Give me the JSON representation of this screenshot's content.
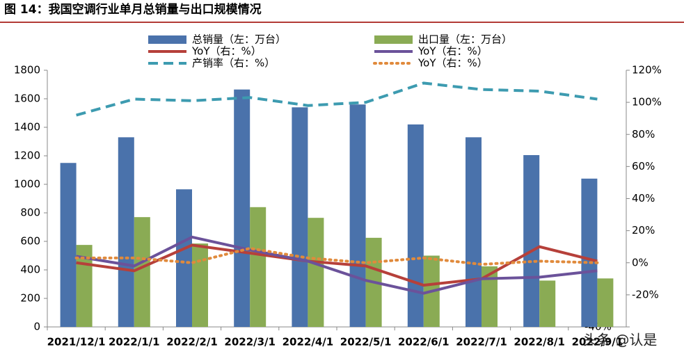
{
  "chart_data": {
    "type": "bar",
    "title": "图 14：我国空调行业单月总销量与出口规模情况",
    "categories": [
      "2021/12/1",
      "2022/1/1",
      "2022/2/1",
      "2022/3/1",
      "2022/4/1",
      "2022/5/1",
      "2022/6/1",
      "2022/7/1",
      "2022/8/1",
      "2022/9/1"
    ],
    "series": [
      {
        "name": "总销量（左：万台）",
        "type": "bar",
        "color": "#4a72ab",
        "values": [
          1150,
          1330,
          965,
          1665,
          1540,
          1560,
          1420,
          1330,
          1205,
          1040
        ]
      },
      {
        "name": "出口量（左：万台）",
        "type": "bar",
        "color": "#8aab54",
        "values": [
          575,
          770,
          585,
          840,
          765,
          625,
          500,
          425,
          325,
          340
        ]
      },
      {
        "name": "YoY（右：%）",
        "type": "line",
        "axis": "y2",
        "color": "#b6403a",
        "dash": "solid",
        "values": [
          0,
          -5,
          11,
          6,
          1,
          -2,
          -14,
          -10,
          10,
          1
        ]
      },
      {
        "name": "YoY（右：%）",
        "type": "line",
        "axis": "y2",
        "color": "#6b529a",
        "dash": "solid",
        "values": [
          4,
          -2,
          16,
          8,
          1,
          -11,
          -19,
          -10,
          -9,
          -5
        ]
      },
      {
        "name": "产销率（右：%）",
        "type": "line",
        "axis": "y2",
        "color": "#3d9bb0",
        "dash": "dashed",
        "values": [
          92,
          102,
          101,
          103,
          98,
          100,
          112,
          108,
          107,
          102
        ]
      },
      {
        "name": "YoY（右：%）",
        "type": "line",
        "axis": "y2",
        "color": "#e08a3c",
        "dash": "dotted",
        "values": [
          3,
          3,
          0,
          9,
          3,
          0,
          3,
          -1,
          1,
          0
        ]
      }
    ],
    "ylim": [
      0,
      1800
    ],
    "yticks": [
      0,
      200,
      400,
      600,
      800,
      1000,
      1200,
      1400,
      1600,
      1800
    ],
    "y2lim": [
      -40,
      120
    ],
    "y2ticks": [
      {
        "value": -40,
        "label": "-40%"
      },
      {
        "value": -20,
        "label": "-20%"
      },
      {
        "value": 0,
        "label": "0%"
      },
      {
        "value": 20,
        "label": "20%"
      },
      {
        "value": 40,
        "label": "40%"
      },
      {
        "value": 60,
        "label": "60%"
      },
      {
        "value": 80,
        "label": "80%"
      },
      {
        "value": 100,
        "label": "100%"
      },
      {
        "value": 120,
        "label": "120%"
      }
    ],
    "watermark": "头条 @认是"
  }
}
